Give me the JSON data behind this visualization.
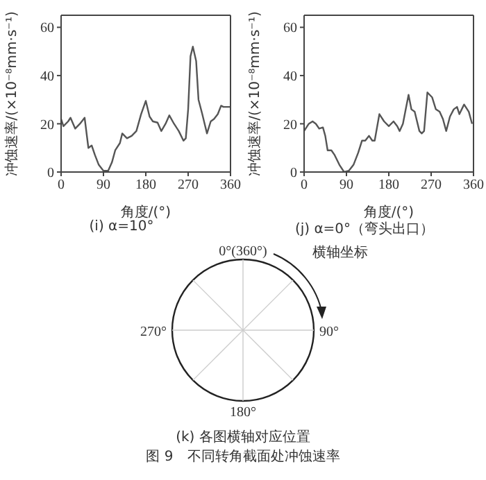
{
  "chart_data": [
    {
      "type": "line",
      "title": "(i) α=10°",
      "xlabel": "角度/(°)",
      "ylabel": "冲蚀速率/(×10⁻⁸mm·s⁻¹)",
      "xlim": [
        0,
        360
      ],
      "xticks": [
        0,
        90,
        180,
        270,
        360
      ],
      "ylim": [
        0,
        65
      ],
      "yticks": [
        0,
        20,
        40,
        60
      ],
      "series": [
        {
          "color": "#555555",
          "x": [
            0,
            5,
            15,
            20,
            30,
            40,
            50,
            58,
            65,
            72,
            80,
            90,
            100,
            108,
            115,
            125,
            130,
            140,
            150,
            160,
            170,
            180,
            188,
            195,
            205,
            213,
            222,
            230,
            240,
            250,
            260,
            265,
            270,
            275,
            280,
            287,
            292,
            300,
            305,
            310,
            318,
            325,
            333,
            340,
            345,
            355,
            360
          ],
          "values": [
            22,
            19,
            21,
            22.5,
            18,
            20,
            22.5,
            10,
            11,
            7,
            3,
            0.5,
            0.5,
            4,
            9,
            12,
            16,
            14,
            15,
            17,
            24,
            29.5,
            23,
            21,
            20.5,
            17,
            20,
            23.5,
            20,
            17,
            13,
            14,
            26,
            48,
            52,
            46,
            30,
            24,
            20,
            16,
            21,
            22,
            24,
            27.5,
            27,
            27,
            27
          ]
        }
      ]
    },
    {
      "type": "line",
      "title": "(j) α=0°（弯头出口）",
      "xlabel": "角度/(°)",
      "ylabel": "冲蚀速率/(×10⁻⁸mm·s⁻¹)",
      "xlim": [
        0,
        360
      ],
      "xticks": [
        0,
        90,
        180,
        270,
        360
      ],
      "ylim": [
        0,
        65
      ],
      "yticks": [
        0,
        20,
        40,
        60
      ],
      "series": [
        {
          "color": "#555555",
          "x": [
            0,
            10,
            18,
            25,
            32,
            40,
            45,
            50,
            58,
            65,
            75,
            85,
            95,
            105,
            115,
            123,
            130,
            138,
            145,
            150,
            160,
            170,
            180,
            190,
            198,
            203,
            210,
            215,
            222,
            228,
            235,
            245,
            250,
            255,
            262,
            272,
            280,
            288,
            295,
            302,
            310,
            318,
            325,
            330,
            340,
            350,
            357
          ],
          "values": [
            17,
            20,
            21,
            20,
            18,
            18.5,
            15,
            9,
            9,
            7,
            3,
            0,
            0.5,
            3,
            8,
            13,
            13,
            15,
            13,
            13,
            24,
            21,
            19,
            21,
            19,
            17,
            20,
            25,
            32,
            26,
            25,
            17,
            16,
            17,
            33,
            31,
            26,
            25,
            22,
            17,
            23,
            26,
            27,
            24,
            28,
            25,
            20
          ]
        }
      ]
    },
    {
      "type": "other",
      "title": "(k) 各图横轴对应位置",
      "annotations": [
        "0°(360°)",
        "90°",
        "180°",
        "270°",
        "横轴坐标",
        "图 9　不同转角截面处冲蚀速率"
      ]
    }
  ]
}
